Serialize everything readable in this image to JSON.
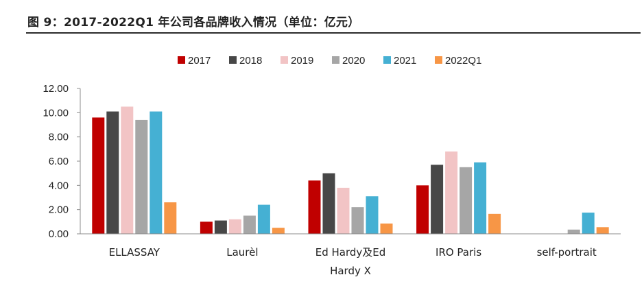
{
  "title": "图 9：2017-2022Q1 年公司各品牌收入情况（单位：亿元）",
  "colors": {
    "2017": "#c00000",
    "2018": "#474747",
    "2019": "#f2c4c5",
    "2020": "#a6a6a6",
    "2021": "#45b0d3",
    "2022Q1": "#f79646"
  },
  "chart_data": {
    "type": "bar",
    "categories": [
      "ELLASSAY",
      "Laurèl",
      "Ed Hardy及Ed Hardy X",
      "IRO Paris",
      "self-portrait"
    ],
    "category_lines": [
      [
        "ELLASSAY"
      ],
      [
        "Laurèl"
      ],
      [
        "Ed Hardy及Ed",
        "Hardy X"
      ],
      [
        "IRO Paris"
      ],
      [
        "self-portrait"
      ]
    ],
    "series": [
      {
        "name": "2017",
        "values": [
          9.6,
          1.0,
          4.4,
          4.0,
          null
        ]
      },
      {
        "name": "2018",
        "values": [
          10.1,
          1.1,
          5.0,
          5.7,
          null
        ]
      },
      {
        "name": "2019",
        "values": [
          10.5,
          1.2,
          3.8,
          6.8,
          null
        ]
      },
      {
        "name": "2020",
        "values": [
          9.4,
          1.5,
          2.2,
          5.5,
          0.35
        ]
      },
      {
        "name": "2021",
        "values": [
          10.1,
          2.4,
          3.1,
          5.9,
          1.75
        ]
      },
      {
        "name": "2022Q1",
        "values": [
          2.6,
          0.5,
          0.85,
          1.65,
          0.55
        ]
      }
    ],
    "yticks": [
      "0.00",
      "2.00",
      "4.00",
      "6.00",
      "8.00",
      "10.00",
      "12.00"
    ],
    "ylim": [
      0,
      12
    ],
    "legend_position": "top",
    "grid": false
  }
}
